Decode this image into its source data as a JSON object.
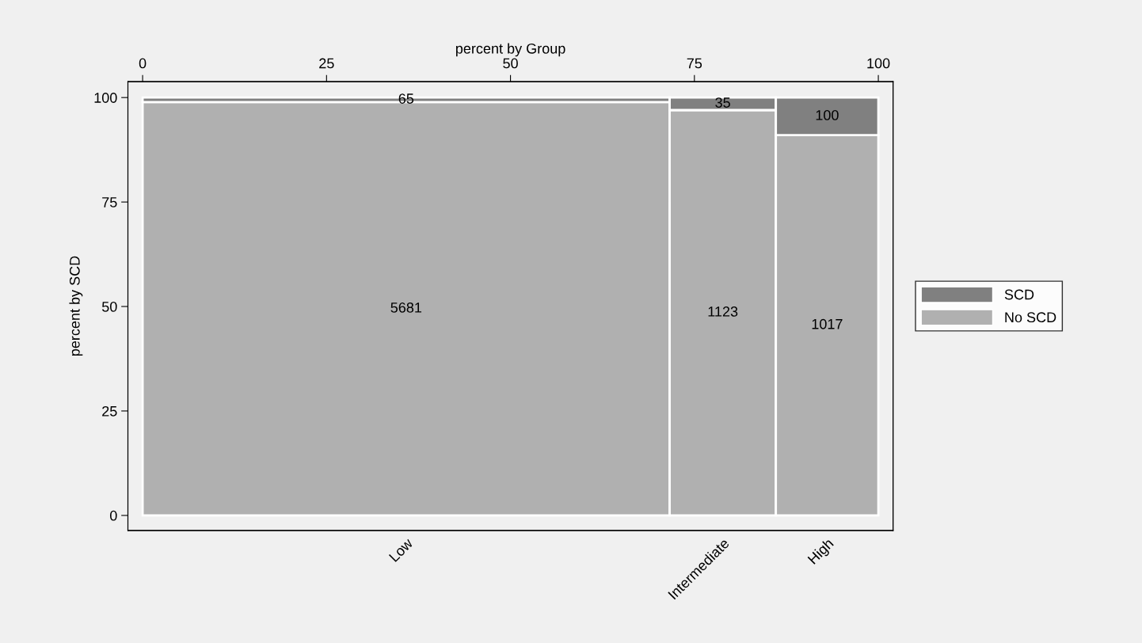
{
  "chart_data": {
    "type": "bar",
    "categories": [
      "Low",
      "Intermediate",
      "High"
    ],
    "series": [
      {
        "name": "No SCD",
        "color": "#b0b0b0",
        "values": [
          98.9,
          97.0,
          91.0
        ]
      },
      {
        "name": "SCD",
        "color": "#808080",
        "values": [
          1.1,
          3.0,
          9.0
        ]
      }
    ],
    "annotations": [
      "5681",
      "65",
      "1123",
      "35",
      "1017",
      "100"
    ],
    "stacked": true,
    "x2label": "percent by Group",
    "x2lim": [
      -2,
      102
    ],
    "x2ticks": [
      0,
      25,
      50,
      75,
      100
    ],
    "ylabel": "percent by SCD",
    "ylim": [
      -3.6,
      103.8
    ],
    "yticks": [
      0,
      25,
      50,
      75,
      100
    ],
    "legend": "right"
  }
}
